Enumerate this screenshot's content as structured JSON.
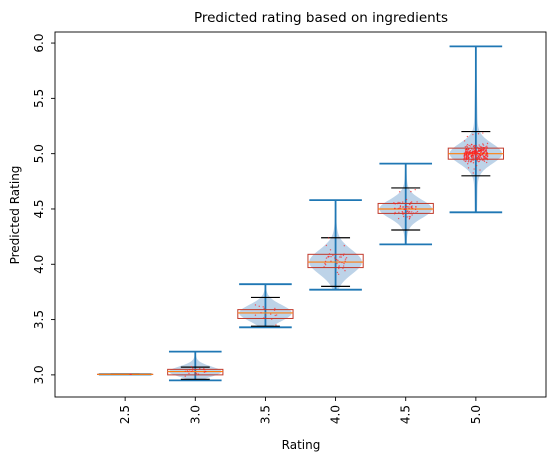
{
  "chart_data": {
    "type": "violin",
    "title": "Predicted rating based on ingredients",
    "xlabel": "Rating",
    "ylabel": "Predicted Rating",
    "xlim": [
      2.0,
      5.5
    ],
    "ylim": [
      2.8,
      6.1
    ],
    "x_ticks": [
      "2.5",
      "3.0",
      "3.5",
      "4.0",
      "4.5",
      "5.0"
    ],
    "y_ticks": [
      "3.0",
      "3.5",
      "4.0",
      "4.5",
      "5.0",
      "5.5",
      "6.0"
    ],
    "grid": false,
    "categories": [
      {
        "x": 2.5,
        "min": 3.005,
        "q1": 3.005,
        "median": 3.005,
        "q3": 3.005,
        "max": 3.005,
        "whisker_low": 3.005,
        "whisker_high": 3.005,
        "points": 2
      },
      {
        "x": 3.0,
        "min": 2.95,
        "q1": 3.0,
        "median": 3.03,
        "q3": 3.05,
        "max": 3.21,
        "whisker_low": 2.96,
        "whisker_high": 3.07,
        "points": 20
      },
      {
        "x": 3.5,
        "min": 3.43,
        "q1": 3.51,
        "median": 3.56,
        "q3": 3.59,
        "max": 3.82,
        "whisker_low": 3.44,
        "whisker_high": 3.7,
        "points": 15
      },
      {
        "x": 4.0,
        "min": 3.77,
        "q1": 3.97,
        "median": 4.02,
        "q3": 4.09,
        "max": 4.58,
        "whisker_low": 3.8,
        "whisker_high": 4.24,
        "points": 40
      },
      {
        "x": 4.5,
        "min": 4.18,
        "q1": 4.46,
        "median": 4.5,
        "q3": 4.55,
        "max": 4.91,
        "whisker_low": 4.31,
        "whisker_high": 4.69,
        "points": 70
      },
      {
        "x": 5.0,
        "min": 4.47,
        "q1": 4.95,
        "median": 5.0,
        "q3": 5.05,
        "max": 5.97,
        "whisker_low": 4.8,
        "whisker_high": 5.2,
        "points": 300
      }
    ],
    "colors": {
      "violin_fill": "#a7c4e0",
      "violin_line": "#1f77b4",
      "box_edge": "#c0392b",
      "median": "#ff7f0e",
      "whisker_cap": "#000000",
      "points": "#ff2020"
    }
  }
}
